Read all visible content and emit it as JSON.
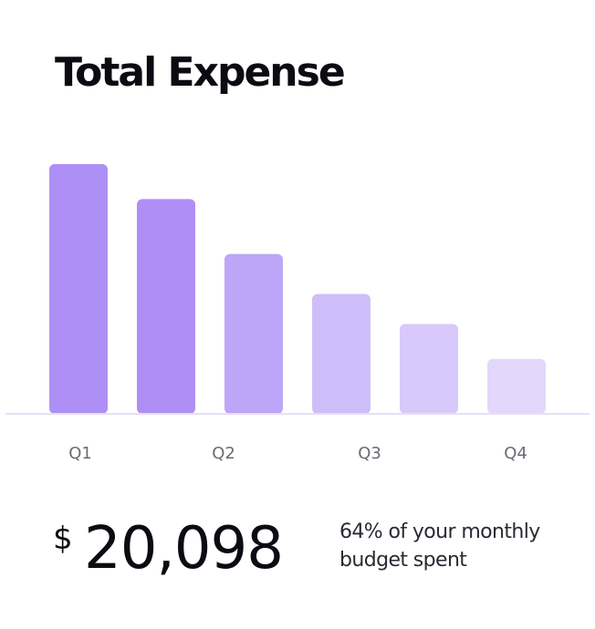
{
  "card": {
    "title": "Total Expense",
    "currency_symbol": "$",
    "amount": "20,098",
    "note_line1": "64% of your monthly",
    "note_line2": "budget spent"
  },
  "colors": {
    "bars": [
      "#ae8ff5",
      "#af8ff5",
      "#bda6f7",
      "#cfbdf9",
      "#d8c9fa",
      "#e3d7fc"
    ],
    "baseline": "#e6e0f5",
    "tick_text": "#6a6a72"
  },
  "chart_data": {
    "type": "bar",
    "title": "Total Expense",
    "xlabel": "",
    "ylabel": "",
    "x_tick_labels": [
      "Q1",
      "Q2",
      "Q3",
      "Q4"
    ],
    "values": [
      100,
      86,
      64,
      48,
      36,
      22
    ],
    "ylim": [
      0,
      100
    ],
    "grid": false,
    "legend": "none"
  }
}
